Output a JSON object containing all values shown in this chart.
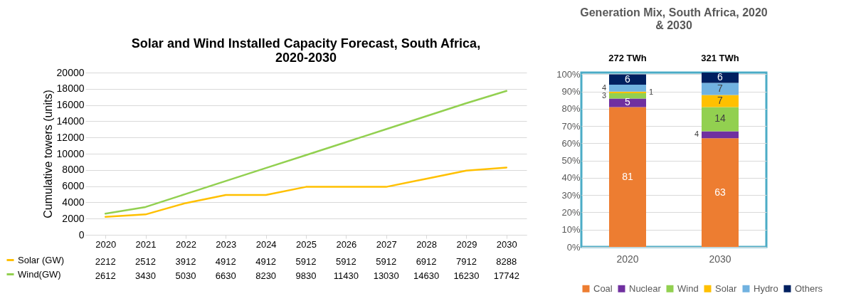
{
  "chart_data": [
    {
      "type": "line",
      "title": "Solar and Wind Installed Capacity Forecast, South Africa, 2020-2030",
      "ylabel": "Cumulative towers (units)",
      "categories": [
        "2020",
        "2021",
        "2022",
        "2023",
        "2024",
        "2025",
        "2026",
        "2027",
        "2028",
        "2029",
        "2030"
      ],
      "series": [
        {
          "name": "Solar (GW)",
          "color": "#ffc000",
          "values": [
            2212,
            2512,
            3912,
            4912,
            4912,
            5912,
            5912,
            5912,
            6912,
            7912,
            8288
          ]
        },
        {
          "name": "Wind(GW)",
          "color": "#92d050",
          "values": [
            2612,
            3430,
            5030,
            6630,
            8230,
            9830,
            11430,
            13030,
            14630,
            16230,
            17742
          ]
        }
      ],
      "ylim": [
        0,
        20000
      ],
      "yticks": [
        0,
        2000,
        4000,
        6000,
        8000,
        10000,
        12000,
        14000,
        16000,
        18000,
        20000
      ],
      "grid": "y",
      "legend": "bottom",
      "data_labels": true,
      "marker": "none"
    },
    {
      "type": "bar",
      "stacked": true,
      "title": "Generation Mix, South Africa, 2020 & 2030",
      "categories": [
        "2020",
        "2030"
      ],
      "series": [
        {
          "name": "Coal",
          "color": "#ed7d31",
          "values": [
            81,
            63
          ]
        },
        {
          "name": "Nuclear",
          "color": "#7030a0",
          "values": [
            5,
            4
          ]
        },
        {
          "name": "Wind",
          "color": "#92d050",
          "values": [
            3,
            14
          ]
        },
        {
          "name": "Solar",
          "color": "#ffc000",
          "values": [
            1,
            7
          ]
        },
        {
          "name": "Hydro",
          "color": "#71b2e0",
          "values": [
            4,
            7
          ]
        },
        {
          "name": "Others",
          "color": "#002060",
          "values": [
            6,
            6
          ]
        }
      ],
      "ylim": [
        0,
        101
      ],
      "yticks": [
        {
          "value": 0,
          "label": "0%"
        },
        {
          "value": 10,
          "label": "10%"
        },
        {
          "value": 20,
          "label": "20%"
        },
        {
          "value": 30,
          "label": "30%"
        },
        {
          "value": 40,
          "label": "40%"
        },
        {
          "value": 50,
          "label": "50%"
        },
        {
          "value": 60,
          "label": "60%"
        },
        {
          "value": 70,
          "label": "70%"
        },
        {
          "value": 80,
          "label": "80%"
        },
        {
          "value": 90,
          "label": "90%"
        },
        {
          "value": 100,
          "label": "100%"
        }
      ],
      "grid": "y",
      "legend": "bottom",
      "data_labels": true,
      "annotations": [
        {
          "text": "272 TWh",
          "x": "2020",
          "y": 100
        },
        {
          "text": "321 TWh",
          "x": "2030",
          "y": 100
        }
      ]
    }
  ]
}
